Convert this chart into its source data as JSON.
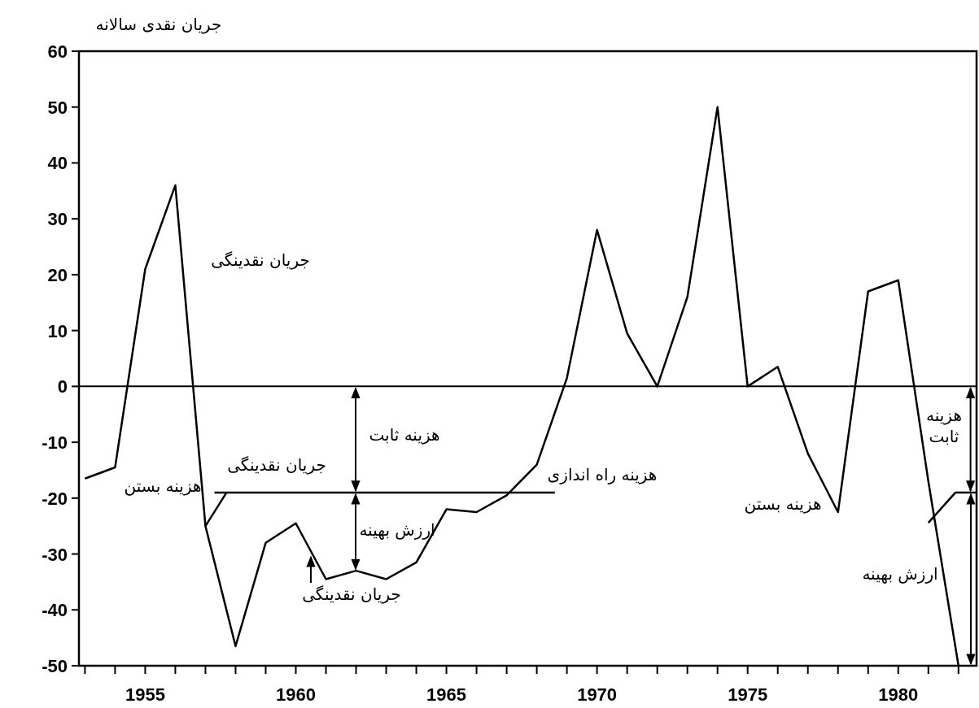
{
  "chart_data": {
    "type": "line",
    "ylabel": "جریان نقدی سالانه",
    "xlim": [
      1952.8,
      1982.6
    ],
    "ylim": [
      -50,
      60
    ],
    "yticks": [
      -50,
      -40,
      -30,
      -20,
      -10,
      0,
      10,
      20,
      30,
      40,
      50,
      60
    ],
    "xticks": [
      {
        "value": 1953,
        "label": null
      },
      {
        "value": 1954,
        "label": null
      },
      1955,
      {
        "value": 1956,
        "label": null
      },
      {
        "value": 1957,
        "label": null
      },
      {
        "value": 1958,
        "label": null
      },
      {
        "value": 1959,
        "label": null
      },
      1960,
      {
        "value": 1961,
        "label": null
      },
      {
        "value": 1962,
        "label": null
      },
      {
        "value": 1963,
        "label": null
      },
      {
        "value": 1964,
        "label": null
      },
      1965,
      {
        "value": 1966,
        "label": null
      },
      {
        "value": 1967,
        "label": null
      },
      {
        "value": 1968,
        "label": null
      },
      {
        "value": 1969,
        "label": null
      },
      1970,
      {
        "value": 1971,
        "label": null
      },
      {
        "value": 1972,
        "label": null
      },
      {
        "value": 1973,
        "label": null
      },
      {
        "value": 1974,
        "label": null
      },
      1975,
      {
        "value": 1976,
        "label": null
      },
      {
        "value": 1977,
        "label": null
      },
      {
        "value": 1978,
        "label": null
      },
      {
        "value": 1979,
        "label": null
      },
      1980,
      {
        "value": 1981,
        "label": null
      },
      {
        "value": 1982,
        "label": null
      }
    ],
    "ref_lines": [
      {
        "axis": "y",
        "value": 0
      }
    ],
    "series": [
      {
        "color": "#000000",
        "x": [
          1953,
          1954,
          1955,
          1956,
          1957,
          1958,
          1959,
          1960,
          1961,
          1962,
          1963,
          1964,
          1965,
          1966,
          1967,
          1968,
          1969,
          1970,
          1971,
          1972,
          1973,
          1974,
          1975,
          1976,
          1977,
          1978,
          1979,
          1980,
          1981,
          1982
        ],
        "values": [
          -16.5,
          -14.5,
          21,
          36,
          -25,
          -46.5,
          -28,
          -24.5,
          -34.5,
          -33,
          -34.5,
          -31.5,
          -22,
          -22.5,
          -19.5,
          -14,
          1.5,
          28,
          9.5,
          0,
          16,
          50,
          0,
          3.5,
          -12,
          -22.5,
          17,
          19,
          -17,
          -50
        ]
      },
      {
        "color": "#000000",
        "x": [
          1957.3,
          1968.6
        ],
        "values": [
          -19,
          -19
        ]
      },
      {
        "color": "#000000",
        "x": [
          1981.9,
          1982.6
        ],
        "values": [
          -19,
          -19
        ]
      },
      {
        "color": "#000000",
        "x": [
          1957,
          1957.7
        ],
        "values": [
          -25,
          -19
        ]
      },
      {
        "color": "#000000",
        "x": [
          1981,
          1981.9
        ],
        "values": [
          -24.4,
          -19
        ]
      }
    ],
    "annotations": [
      "جریان نقدینگی",
      "هزینه ثابت",
      "جریان نقدینگی",
      "هزینه بستن",
      "ارزش بهینه",
      "جریان نقدینگی",
      "هزینه راه اندازی",
      {
        "text": "هزینه ثابت",
        "x": 1982.4,
        "y": -19
      },
      "هزینه بستن",
      "ارزش بهینه"
    ]
  }
}
